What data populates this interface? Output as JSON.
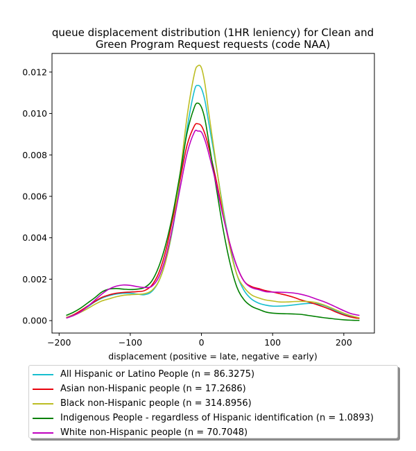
{
  "chart_data": {
    "type": "line",
    "title": "queue displacement distribution (1HR leniency) for Clean and Green Program Request  requests (code NAA)",
    "title_lines": [
      "queue displacement distribution (1HR leniency) for Clean and",
      "Green Program Request  requests (code NAA)"
    ],
    "xlabel": "displacement (positive = late, negative = early)",
    "ylabel": "",
    "xlim": [
      -210,
      243
    ],
    "ylim": [
      -0.0006,
      0.0129
    ],
    "xticks": [
      -200,
      -100,
      0,
      100,
      200
    ],
    "xtick_labels": [
      "−200",
      "−100",
      "0",
      "100",
      "200"
    ],
    "yticks": [
      0.0,
      0.002,
      0.004,
      0.006,
      0.008,
      0.01,
      0.012
    ],
    "ytick_labels": [
      "0.000",
      "0.002",
      "0.004",
      "0.006",
      "0.008",
      "0.010",
      "0.012"
    ],
    "grid": false,
    "legend_position": "below",
    "x": [
      -190,
      -180,
      -170,
      -160,
      -150,
      -140,
      -130,
      -120,
      -110,
      -100,
      -90,
      -80,
      -70,
      -60,
      -50,
      -40,
      -30,
      -20,
      -10,
      -5,
      0,
      5,
      10,
      20,
      30,
      40,
      50,
      60,
      70,
      80,
      90,
      100,
      110,
      120,
      130,
      140,
      150,
      160,
      170,
      180,
      190,
      200,
      210,
      222
    ],
    "series": [
      {
        "name": "All Hispanic or Latino People (n = 86.3275)",
        "color": "#17becf",
        "values": [
          0.00015,
          0.00028,
          0.00045,
          0.00066,
          0.0009,
          0.00108,
          0.0012,
          0.00128,
          0.00132,
          0.00132,
          0.00128,
          0.00125,
          0.0014,
          0.0019,
          0.0029,
          0.0045,
          0.0068,
          0.0093,
          0.0111,
          0.01135,
          0.0112,
          0.0106,
          0.0096,
          0.0076,
          0.0055,
          0.0036,
          0.0022,
          0.00145,
          0.00105,
          0.00085,
          0.00075,
          0.0007,
          0.0007,
          0.00072,
          0.00076,
          0.0008,
          0.00083,
          0.00082,
          0.00075,
          0.00062,
          0.00045,
          0.0003,
          0.0002,
          0.0001
        ]
      },
      {
        "name": "Asian non-Hispanic people (n = 17.2686)",
        "color": "#e8000b",
        "values": [
          0.00015,
          0.00028,
          0.00048,
          0.0007,
          0.00092,
          0.00112,
          0.00124,
          0.00132,
          0.00136,
          0.00138,
          0.0014,
          0.00145,
          0.0017,
          0.0023,
          0.0034,
          0.005,
          0.0068,
          0.0085,
          0.0094,
          0.0095,
          0.0094,
          0.009,
          0.0084,
          0.0069,
          0.0052,
          0.0037,
          0.0026,
          0.0019,
          0.00165,
          0.00155,
          0.00145,
          0.00138,
          0.0013,
          0.00122,
          0.00112,
          0.001,
          0.0009,
          0.0008,
          0.00068,
          0.00055,
          0.0004,
          0.00027,
          0.00017,
          0.0001
        ]
      },
      {
        "name": "Black non-Hispanic people (n = 314.8956)",
        "color": "#bcbd22",
        "values": [
          0.00015,
          0.00025,
          0.0004,
          0.00058,
          0.00078,
          0.00095,
          0.00105,
          0.00115,
          0.00122,
          0.00125,
          0.00127,
          0.0013,
          0.00145,
          0.0019,
          0.0029,
          0.0046,
          0.0071,
          0.0099,
          0.0119,
          0.0123,
          0.0122,
          0.0114,
          0.0101,
          0.0077,
          0.0054,
          0.0035,
          0.0022,
          0.0016,
          0.00125,
          0.0011,
          0.001,
          0.00095,
          0.0009,
          0.0009,
          0.00092,
          0.00093,
          0.00092,
          0.00088,
          0.00078,
          0.00065,
          0.0005,
          0.00036,
          0.00024,
          0.00013
        ]
      },
      {
        "name": "Indigenous People - regardless of Hispanic identification (n = 1.0893)",
        "color": "#008000",
        "values": [
          0.00025,
          0.0004,
          0.0006,
          0.00085,
          0.0011,
          0.00138,
          0.00152,
          0.00155,
          0.00152,
          0.0015,
          0.00152,
          0.0016,
          0.0019,
          0.0026,
          0.0037,
          0.0052,
          0.0071,
          0.0091,
          0.0103,
          0.0105,
          0.0103,
          0.0097,
          0.0087,
          0.0066,
          0.0045,
          0.0028,
          0.0016,
          0.001,
          0.0007,
          0.00055,
          0.00042,
          0.00036,
          0.00034,
          0.00033,
          0.00032,
          0.0003,
          0.00025,
          0.0002,
          0.00015,
          0.00011,
          7e-05,
          4e-05,
          2e-05,
          1e-05
        ]
      },
      {
        "name": "White non-Hispanic people (n = 70.7048)",
        "color": "#bf00bf",
        "values": [
          0.00012,
          0.00024,
          0.00042,
          0.00068,
          0.00098,
          0.00128,
          0.00152,
          0.00166,
          0.00172,
          0.0017,
          0.00164,
          0.0016,
          0.00165,
          0.0021,
          0.0031,
          0.0046,
          0.0064,
          0.0081,
          0.0091,
          0.00915,
          0.0091,
          0.0087,
          0.0081,
          0.0067,
          0.0051,
          0.0037,
          0.0026,
          0.0019,
          0.0016,
          0.0015,
          0.0014,
          0.00138,
          0.00137,
          0.00136,
          0.00133,
          0.00127,
          0.00118,
          0.00106,
          0.00094,
          0.0008,
          0.00064,
          0.00048,
          0.00034,
          0.00025
        ]
      }
    ]
  }
}
